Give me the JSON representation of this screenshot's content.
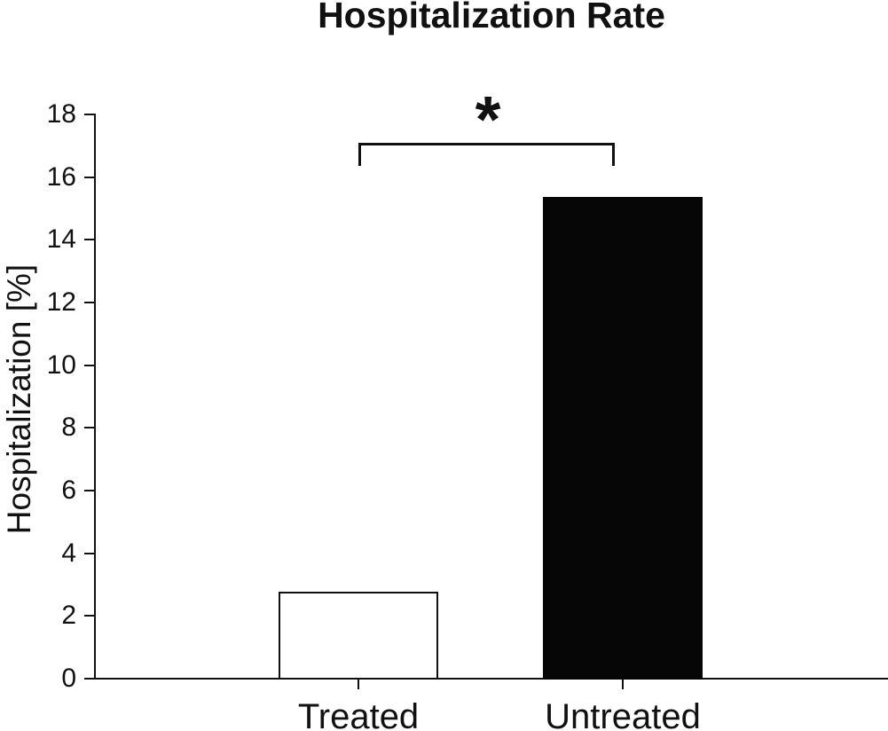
{
  "figure": {
    "title": "Hospitalization Rate"
  },
  "chart_data": {
    "type": "bar",
    "title": "Hospitalization Rate",
    "ylabel": "Hospitalization [%]",
    "xlabel": "",
    "categories": [
      "Treated",
      "Untreated"
    ],
    "values": [
      2.8,
      15.4
    ],
    "ylim": [
      0,
      18
    ],
    "yticks": [
      0,
      2,
      4,
      6,
      8,
      10,
      12,
      14,
      16,
      18
    ],
    "grid": false,
    "legend": false,
    "bar_styles": [
      {
        "category": "Treated",
        "fill": "#ffffff",
        "border": "#111111"
      },
      {
        "category": "Untreated",
        "fill": "#060606",
        "border": "#060606"
      }
    ],
    "annotations": [
      {
        "type": "significance-bracket",
        "label": "*",
        "from": "Treated",
        "to": "Untreated"
      }
    ]
  },
  "colors": {
    "background": "#ffffff",
    "axis": "#111111",
    "text": "#111111"
  }
}
